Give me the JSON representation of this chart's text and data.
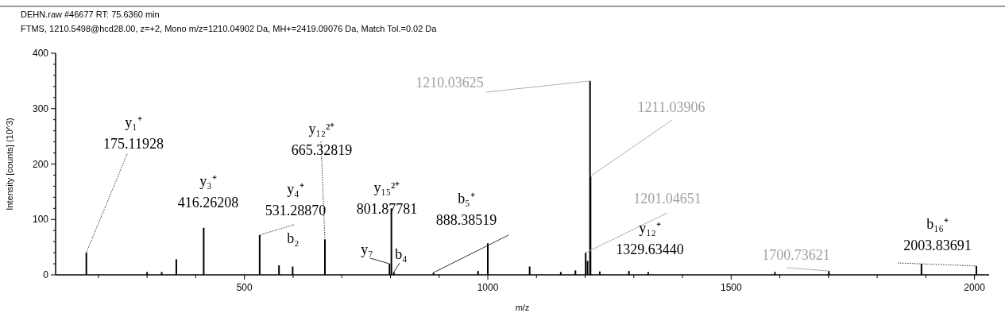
{
  "chart_data": {
    "type": "bar",
    "title": "DEHN.raw  #46677  RT: 75.6360 min",
    "subtitle": "FTMS, 1210.5498@hcd28.00, z=+2, Mono m/z=1210.04902 Da, MH+=2419.09076 Da, Match Tol.=0.02 Da",
    "xlabel": "m/z",
    "ylabel": "Intensity [counts] (10^3)",
    "x": [
      175.12,
      300,
      330,
      360,
      416.26,
      531.29,
      571,
      599,
      665.33,
      798,
      801.88,
      807,
      888.39,
      980,
      1000,
      1086,
      1150,
      1180,
      1201.05,
      1205,
      1210.04,
      1211.04,
      1230,
      1290,
      1329.63,
      1590,
      1700.74,
      1891,
      2003.84
    ],
    "values": [
      40,
      5,
      5,
      28,
      85,
      72,
      17,
      15,
      64,
      20,
      120,
      5,
      4,
      7,
      57,
      15,
      5,
      8,
      40,
      25,
      350,
      178,
      6,
      7,
      5,
      5,
      7,
      20,
      16
    ],
    "color": "#000000",
    "xlim": [
      112,
      2030
    ],
    "ylim": [
      0,
      400
    ],
    "xticks": [
      {
        "value": 200,
        "label": null
      },
      {
        "value": 300,
        "label": null
      },
      {
        "value": 400,
        "label": null
      },
      500,
      {
        "value": 600,
        "label": null
      },
      {
        "value": 700,
        "label": null
      },
      {
        "value": 800,
        "label": null
      },
      {
        "value": 900,
        "label": null
      },
      1000,
      {
        "value": 1100,
        "label": null
      },
      {
        "value": 1200,
        "label": null
      },
      {
        "value": 1300,
        "label": null
      },
      {
        "value": 1400,
        "label": null
      },
      1500,
      {
        "value": 1600,
        "label": null
      },
      {
        "value": 1700,
        "label": null
      },
      {
        "value": 1800,
        "label": null
      },
      {
        "value": 1900,
        "label": null
      },
      2000
    ],
    "yticks": [
      0,
      {
        "value": 20,
        "label": null
      },
      {
        "value": 40,
        "label": null
      },
      {
        "value": 60,
        "label": null
      },
      {
        "value": 80,
        "label": null
      },
      100,
      {
        "value": 120,
        "label": null
      },
      {
        "value": 140,
        "label": null
      },
      {
        "value": 160,
        "label": null
      },
      {
        "value": 180,
        "label": null
      },
      200,
      {
        "value": 220,
        "label": null
      },
      {
        "value": 240,
        "label": null
      },
      {
        "value": 260,
        "label": null
      },
      {
        "value": 280,
        "label": null
      },
      300,
      {
        "value": 320,
        "label": null
      },
      {
        "value": 340,
        "label": null
      },
      {
        "value": 360,
        "label": null
      },
      {
        "value": 380,
        "label": null
      },
      400
    ],
    "grid": false,
    "annotations": [
      {
        "text": "y₁⁺\n175.11928",
        "x": 175.12,
        "y": 40
      },
      {
        "text": "y₃⁺\n416.26208",
        "x": 416.26,
        "y": 85
      },
      {
        "text": "y₄⁺\n531.28870",
        "x": 531.29,
        "y": 72
      },
      {
        "text": "b₂",
        "x": 599,
        "y": 15
      },
      {
        "text": "y₁₂²⁺\n665.32819",
        "x": 665.33,
        "y": 64
      },
      {
        "text": "y₁₅²⁺\n801.87781",
        "x": 801.88,
        "y": 120
      },
      {
        "text": "y₇",
        "x": 798,
        "y": 20
      },
      {
        "text": "b₄",
        "x": 807,
        "y": 5
      },
      {
        "text": "b₅⁺\n888.38519",
        "x": 888.39,
        "y": 4
      },
      {
        "text": "1210.03625",
        "x": 1210.04,
        "y": 350
      },
      {
        "text": "1211.03906",
        "x": 1211.04,
        "y": 178
      },
      {
        "text": "1201.04651",
        "x": 1201.05,
        "y": 40
      },
      {
        "text": "y₁₂⁺\n1329.63440",
        "x": 1329.63,
        "y": 5
      },
      {
        "text": "1700.73621",
        "x": 1700.74,
        "y": 7
      },
      {
        "text": "b₁₆⁺\n2003.83691",
        "x": 2003.84,
        "y": 16
      }
    ]
  }
}
